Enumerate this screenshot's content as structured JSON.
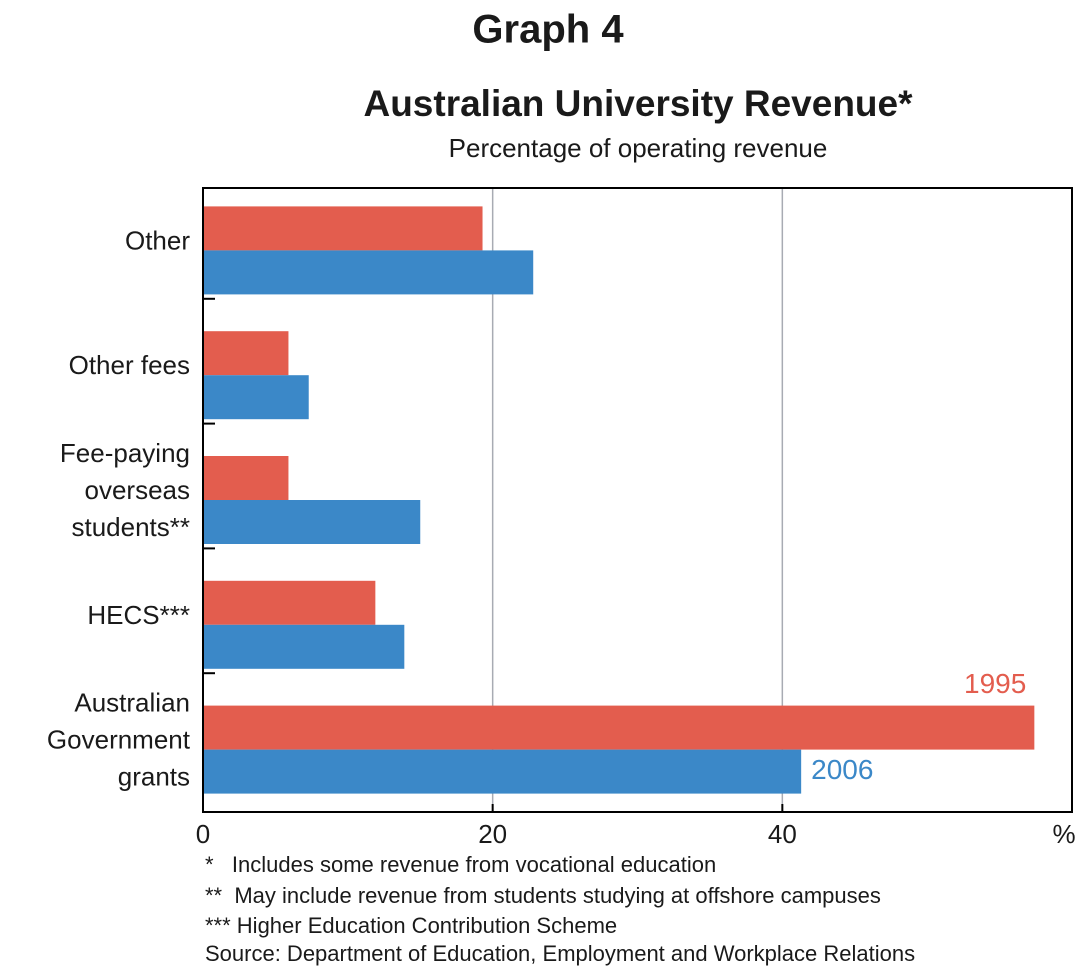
{
  "chart_data": {
    "type": "barh",
    "header": "Graph 4",
    "title": "Australian University Revenue*",
    "subtitle": "Percentage of operating revenue",
    "categories": [
      "Other",
      "Other fees",
      "Fee-paying\noverseas\nstudents**",
      "HECS***",
      "Australian\nGovernment\ngrants"
    ],
    "series": [
      {
        "name": "1995",
        "color": "#e35d4e",
        "values": [
          19.3,
          5.9,
          5.9,
          11.9,
          57.4
        ]
      },
      {
        "name": "2006",
        "color": "#3b88c8",
        "values": [
          22.8,
          7.3,
          15.0,
          13.9,
          41.3
        ]
      }
    ],
    "xlim": [
      0,
      60
    ],
    "xticks": [
      0,
      20,
      40
    ],
    "x_unit": "%",
    "grid": true,
    "footnotes": [
      "*   Includes some revenue from vocational education",
      "**  May include revenue from students studying at offshore campuses",
      "*** Higher Education Contribution Scheme",
      "Source: Department of Education, Employment and Workplace Relations"
    ]
  }
}
